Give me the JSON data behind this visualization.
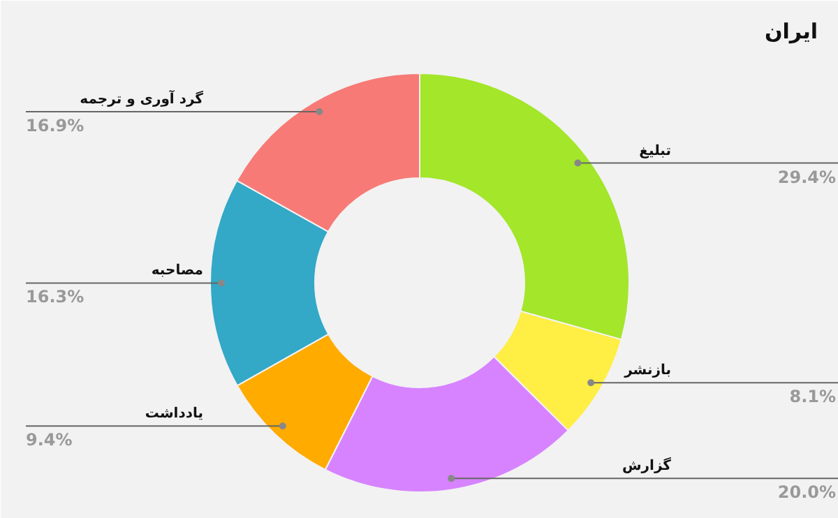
{
  "chart_data": {
    "type": "donut",
    "title": "ایران",
    "categories": [
      "تبلیغ",
      "بازنشر",
      "گزارش",
      "یادداشت",
      "مصاحبه",
      "گرد آوری و ترجمه"
    ],
    "values": [
      29.4,
      8.1,
      20.0,
      9.4,
      16.3,
      16.9
    ],
    "value_labels": [
      "29.4%",
      "8.1%",
      "20.0%",
      "9.4%",
      "16.3%",
      "16.9%"
    ],
    "colors": [
      "#a3e62a",
      "#ffee44",
      "#d783ff",
      "#ffab00",
      "#33a8c7",
      "#f77a76"
    ]
  }
}
